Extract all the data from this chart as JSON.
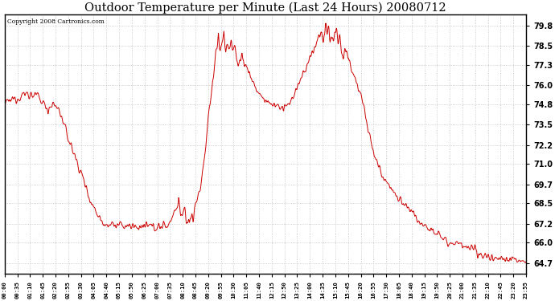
{
  "title": "Outdoor Temperature per Minute (Last 24 Hours) 20080712",
  "copyright": "Copyright 2008 Cartronics.com",
  "background_color": "#ffffff",
  "plot_bg_color": "#ffffff",
  "grid_color": "#c0c0c0",
  "line_color": "#cc0000",
  "ylim": [
    64.0,
    80.5
  ],
  "yticks": [
    64.7,
    66.0,
    67.2,
    68.5,
    69.7,
    71.0,
    72.2,
    73.5,
    74.8,
    76.0,
    77.3,
    78.5,
    79.8
  ],
  "xtick_labels": [
    "00:00",
    "00:35",
    "01:10",
    "01:45",
    "02:20",
    "02:55",
    "03:30",
    "04:05",
    "04:40",
    "05:15",
    "05:50",
    "06:25",
    "07:00",
    "07:35",
    "08:10",
    "08:45",
    "09:20",
    "09:55",
    "10:30",
    "11:05",
    "11:40",
    "12:15",
    "12:50",
    "13:25",
    "14:00",
    "14:35",
    "15:10",
    "15:45",
    "16:20",
    "16:55",
    "17:30",
    "18:05",
    "18:40",
    "19:15",
    "19:50",
    "20:25",
    "21:00",
    "21:35",
    "22:10",
    "22:45",
    "23:20",
    "23:55"
  ]
}
